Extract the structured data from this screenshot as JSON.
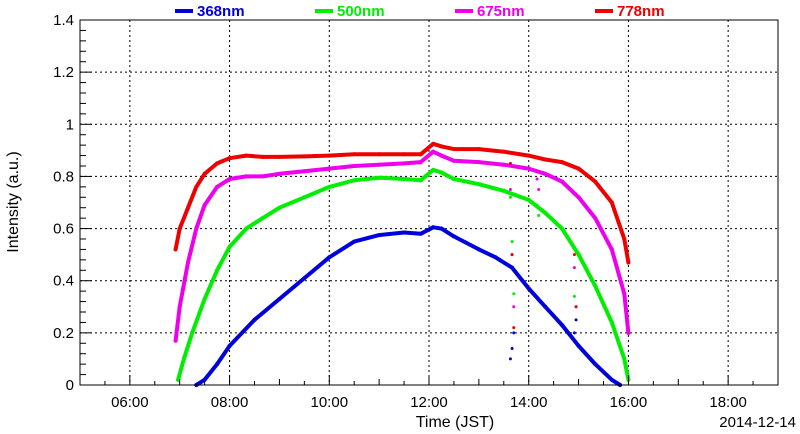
{
  "chart_data": {
    "type": "scatter",
    "xlabel": "Time (JST)",
    "ylabel": "Intensity (a.u.)",
    "date": "2014-12-14",
    "xlim": [
      "05:00",
      "19:00"
    ],
    "ylim": [
      0,
      1.4
    ],
    "x_ticks": [
      "06:00",
      "08:00",
      "10:00",
      "12:00",
      "14:00",
      "16:00",
      "18:00"
    ],
    "y_ticks": [
      "0",
      "0.2",
      "0.4",
      "0.6",
      "0.8",
      "1",
      "1.2",
      "1.4"
    ],
    "grid": true,
    "legend_placement": "top",
    "series": [
      {
        "name": "368nm",
        "color": "#0000dd",
        "points": [
          [
            "07:20",
            0.0
          ],
          [
            "07:30",
            0.02
          ],
          [
            "07:45",
            0.08
          ],
          [
            "08:00",
            0.15
          ],
          [
            "08:30",
            0.25
          ],
          [
            "09:00",
            0.33
          ],
          [
            "09:30",
            0.41
          ],
          [
            "10:00",
            0.49
          ],
          [
            "10:30",
            0.55
          ],
          [
            "11:00",
            0.575
          ],
          [
            "11:30",
            0.585
          ],
          [
            "11:50",
            0.58
          ],
          [
            "12:05",
            0.605
          ],
          [
            "12:15",
            0.6
          ],
          [
            "12:30",
            0.57
          ],
          [
            "13:00",
            0.52
          ],
          [
            "13:20",
            0.49
          ],
          [
            "13:40",
            0.45
          ],
          [
            "14:00",
            0.37
          ],
          [
            "14:20",
            0.3
          ],
          [
            "14:40",
            0.23
          ],
          [
            "15:00",
            0.15
          ],
          [
            "15:20",
            0.08
          ],
          [
            "15:40",
            0.02
          ],
          [
            "15:50",
            0.0
          ]
        ],
        "outliers": [
          [
            "13:38",
            0.1
          ],
          [
            "13:40",
            0.14
          ],
          [
            "13:42",
            0.2
          ],
          [
            "14:55",
            0.2
          ],
          [
            "14:57",
            0.25
          ],
          [
            "16:00",
            0.02
          ]
        ]
      },
      {
        "name": "500nm",
        "color": "#00ee00",
        "points": [
          [
            "06:58",
            0.02
          ],
          [
            "07:05",
            0.1
          ],
          [
            "07:15",
            0.2
          ],
          [
            "07:30",
            0.33
          ],
          [
            "07:45",
            0.44
          ],
          [
            "08:00",
            0.53
          ],
          [
            "08:20",
            0.6
          ],
          [
            "08:40",
            0.64
          ],
          [
            "09:00",
            0.68
          ],
          [
            "09:30",
            0.72
          ],
          [
            "10:00",
            0.76
          ],
          [
            "10:30",
            0.785
          ],
          [
            "11:00",
            0.795
          ],
          [
            "11:30",
            0.79
          ],
          [
            "11:50",
            0.785
          ],
          [
            "12:05",
            0.825
          ],
          [
            "12:15",
            0.815
          ],
          [
            "12:30",
            0.79
          ],
          [
            "13:00",
            0.77
          ],
          [
            "13:30",
            0.745
          ],
          [
            "14:00",
            0.71
          ],
          [
            "14:20",
            0.66
          ],
          [
            "14:40",
            0.6
          ],
          [
            "15:00",
            0.5
          ],
          [
            "15:20",
            0.38
          ],
          [
            "15:40",
            0.24
          ],
          [
            "15:55",
            0.1
          ],
          [
            "16:00",
            0.02
          ]
        ],
        "outliers": [
          [
            "13:38",
            0.72
          ],
          [
            "13:40",
            0.55
          ],
          [
            "13:42",
            0.35
          ],
          [
            "14:10",
            0.69
          ],
          [
            "14:12",
            0.65
          ],
          [
            "14:55",
            0.34
          ]
        ]
      },
      {
        "name": "675nm",
        "color": "#ee00ee",
        "points": [
          [
            "06:55",
            0.17
          ],
          [
            "07:00",
            0.3
          ],
          [
            "07:10",
            0.47
          ],
          [
            "07:20",
            0.6
          ],
          [
            "07:30",
            0.69
          ],
          [
            "07:45",
            0.76
          ],
          [
            "08:00",
            0.79
          ],
          [
            "08:20",
            0.8
          ],
          [
            "08:40",
            0.8
          ],
          [
            "09:00",
            0.81
          ],
          [
            "09:30",
            0.82
          ],
          [
            "10:00",
            0.83
          ],
          [
            "10:30",
            0.84
          ],
          [
            "11:00",
            0.845
          ],
          [
            "11:30",
            0.85
          ],
          [
            "11:50",
            0.855
          ],
          [
            "12:05",
            0.895
          ],
          [
            "12:15",
            0.88
          ],
          [
            "12:30",
            0.86
          ],
          [
            "13:00",
            0.855
          ],
          [
            "13:30",
            0.845
          ],
          [
            "14:00",
            0.83
          ],
          [
            "14:20",
            0.81
          ],
          [
            "14:40",
            0.78
          ],
          [
            "15:00",
            0.72
          ],
          [
            "15:20",
            0.64
          ],
          [
            "15:40",
            0.52
          ],
          [
            "15:55",
            0.35
          ],
          [
            "16:00",
            0.2
          ]
        ],
        "outliers": [
          [
            "13:38",
            0.75
          ],
          [
            "13:40",
            0.5
          ],
          [
            "13:42",
            0.3
          ],
          [
            "14:10",
            0.79
          ],
          [
            "14:12",
            0.75
          ],
          [
            "14:55",
            0.45
          ],
          [
            "14:57",
            0.3
          ]
        ]
      },
      {
        "name": "778nm",
        "color": "#ee0000",
        "points": [
          [
            "06:55",
            0.52
          ],
          [
            "07:00",
            0.6
          ],
          [
            "07:10",
            0.68
          ],
          [
            "07:20",
            0.76
          ],
          [
            "07:30",
            0.81
          ],
          [
            "07:45",
            0.85
          ],
          [
            "08:00",
            0.87
          ],
          [
            "08:20",
            0.88
          ],
          [
            "08:40",
            0.875
          ],
          [
            "09:00",
            0.875
          ],
          [
            "09:30",
            0.877
          ],
          [
            "10:00",
            0.88
          ],
          [
            "10:30",
            0.885
          ],
          [
            "11:00",
            0.885
          ],
          [
            "11:30",
            0.885
          ],
          [
            "11:50",
            0.885
          ],
          [
            "12:05",
            0.925
          ],
          [
            "12:15",
            0.915
          ],
          [
            "12:30",
            0.905
          ],
          [
            "13:00",
            0.905
          ],
          [
            "13:30",
            0.895
          ],
          [
            "14:00",
            0.88
          ],
          [
            "14:20",
            0.865
          ],
          [
            "14:40",
            0.855
          ],
          [
            "15:00",
            0.83
          ],
          [
            "15:20",
            0.78
          ],
          [
            "15:40",
            0.7
          ],
          [
            "15:55",
            0.56
          ],
          [
            "16:00",
            0.47
          ]
        ],
        "outliers": [
          [
            "13:38",
            0.85
          ],
          [
            "13:40",
            0.5
          ],
          [
            "13:42",
            0.22
          ],
          [
            "14:55",
            0.5
          ],
          [
            "14:57",
            0.3
          ]
        ]
      }
    ]
  }
}
